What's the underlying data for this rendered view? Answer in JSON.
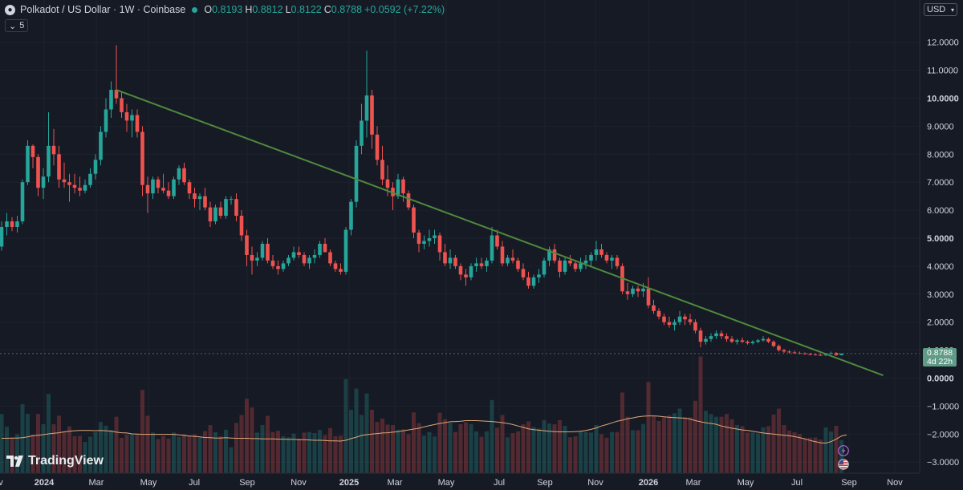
{
  "header": {
    "title": "Polkadot / US Dollar · 1W · Coinbase",
    "ohlc": [
      {
        "k": "O",
        "v": "0.8193"
      },
      {
        "k": "H",
        "v": "0.8812"
      },
      {
        "k": "L",
        "v": "0.8122"
      },
      {
        "k": "C",
        "v": "0.8788"
      },
      {
        "k": "",
        "v": "+0.0592 (+7.22%)"
      }
    ],
    "indicator_toggle": "5"
  },
  "currency": "USD",
  "last_price": {
    "value": "0.8788",
    "countdown": "4d 22h"
  },
  "brand": "TradingView",
  "colors": {
    "up": "#26a69a",
    "down": "#ef5350",
    "trendline": "#4f8a3c",
    "ma": "#e0a77a",
    "background": "#161a25"
  },
  "chart_data": {
    "type": "candlestick",
    "interval": "1W",
    "y_axis": {
      "ticks": [
        "12.0000",
        "11.0000",
        "10.0000",
        "9.0000",
        "8.0000",
        "7.0000",
        "6.0000",
        "5.0000",
        "4.0000",
        "3.0000",
        "2.0000",
        "1.0000",
        "0.0000",
        "−1.0000",
        "−2.0000",
        "−3.0000"
      ],
      "bold": [
        "10.0000",
        "5.0000",
        "0.0000"
      ]
    },
    "x_axis": {
      "ticks": [
        "ov",
        "2024",
        "Mar",
        "May",
        "Jul",
        "Sep",
        "Nov",
        "2025",
        "Mar",
        "May",
        "Jul",
        "Sep",
        "Nov",
        "2026",
        "Mar",
        "May",
        "Jul",
        "Sep",
        "Nov"
      ],
      "bold": [
        "2024",
        "2025",
        "2026"
      ]
    },
    "candles": [
      [
        4.7,
        5.6,
        4.55,
        5.4
      ],
      [
        5.4,
        5.9,
        5.1,
        5.6
      ],
      [
        5.6,
        5.75,
        5.25,
        5.4
      ],
      [
        5.4,
        5.8,
        5.2,
        5.6
      ],
      [
        5.6,
        7.1,
        5.5,
        7.0
      ],
      [
        7.0,
        8.5,
        6.9,
        8.3
      ],
      [
        8.3,
        8.35,
        7.5,
        7.9
      ],
      [
        7.9,
        8.0,
        6.5,
        6.8
      ],
      [
        6.8,
        7.5,
        6.4,
        7.2
      ],
      [
        7.2,
        9.5,
        7.0,
        8.3
      ],
      [
        8.3,
        8.9,
        7.6,
        8.0
      ],
      [
        8.0,
        8.3,
        6.8,
        7.1
      ],
      [
        7.1,
        7.7,
        6.8,
        7.0
      ],
      [
        7.0,
        7.3,
        6.3,
        6.9
      ],
      [
        6.9,
        7.3,
        6.6,
        6.8
      ],
      [
        6.8,
        7.2,
        6.5,
        6.7
      ],
      [
        6.7,
        7.1,
        6.6,
        6.9
      ],
      [
        6.9,
        7.5,
        6.8,
        7.3
      ],
      [
        7.3,
        8.0,
        7.1,
        7.8
      ],
      [
        7.8,
        9.0,
        7.6,
        8.8
      ],
      [
        8.8,
        10.0,
        8.6,
        9.6
      ],
      [
        9.6,
        10.6,
        9.3,
        10.3
      ],
      [
        10.3,
        11.9,
        9.8,
        10.0
      ],
      [
        10.0,
        10.2,
        9.3,
        9.5
      ],
      [
        9.5,
        9.8,
        8.8,
        9.2
      ],
      [
        9.2,
        9.6,
        8.6,
        9.4
      ],
      [
        9.4,
        9.6,
        8.6,
        8.8
      ],
      [
        8.8,
        9.0,
        6.5,
        6.9
      ],
      [
        6.9,
        7.2,
        5.9,
        6.6
      ],
      [
        6.6,
        7.2,
        6.4,
        7.1
      ],
      [
        7.1,
        7.2,
        6.6,
        6.8
      ],
      [
        6.8,
        7.3,
        6.6,
        6.7
      ],
      [
        6.7,
        7.0,
        6.4,
        6.5
      ],
      [
        6.5,
        7.2,
        6.4,
        7.1
      ],
      [
        7.1,
        7.6,
        6.9,
        7.5
      ],
      [
        7.5,
        7.7,
        6.9,
        7.0
      ],
      [
        7.0,
        7.1,
        6.4,
        6.6
      ],
      [
        6.6,
        6.8,
        6.1,
        6.4
      ],
      [
        6.4,
        6.6,
        6.0,
        6.5
      ],
      [
        6.5,
        6.8,
        6.0,
        6.1
      ],
      [
        6.1,
        6.3,
        5.4,
        5.6
      ],
      [
        5.6,
        6.2,
        5.5,
        6.1
      ],
      [
        6.1,
        6.3,
        5.7,
        5.8
      ],
      [
        5.8,
        6.5,
        5.7,
        6.4
      ],
      [
        6.4,
        6.5,
        6.2,
        6.4
      ],
      [
        6.4,
        6.6,
        5.6,
        5.8
      ],
      [
        5.8,
        6.0,
        4.9,
        5.1
      ],
      [
        5.1,
        5.3,
        4.0,
        4.4
      ],
      [
        4.4,
        4.7,
        3.7,
        4.2
      ],
      [
        4.2,
        4.5,
        4.0,
        4.3
      ],
      [
        4.3,
        4.9,
        4.2,
        4.8
      ],
      [
        4.8,
        5.0,
        4.1,
        4.2
      ],
      [
        4.2,
        4.4,
        3.9,
        4.0
      ],
      [
        4.0,
        4.2,
        3.7,
        3.9
      ],
      [
        3.9,
        4.2,
        3.8,
        4.1
      ],
      [
        4.1,
        4.4,
        4.0,
        4.3
      ],
      [
        4.3,
        4.7,
        4.2,
        4.5
      ],
      [
        4.5,
        4.7,
        4.3,
        4.4
      ],
      [
        4.4,
        4.5,
        4.0,
        4.1
      ],
      [
        4.1,
        4.4,
        3.9,
        4.3
      ],
      [
        4.3,
        4.6,
        4.1,
        4.4
      ],
      [
        4.4,
        4.9,
        4.3,
        4.8
      ],
      [
        4.8,
        5.0,
        4.5,
        4.5
      ],
      [
        4.5,
        4.6,
        4.0,
        4.1
      ],
      [
        4.1,
        4.2,
        3.8,
        3.9
      ],
      [
        3.9,
        4.1,
        3.7,
        3.8
      ],
      [
        3.8,
        5.4,
        3.7,
        5.3
      ],
      [
        5.3,
        6.4,
        5.1,
        6.3
      ],
      [
        6.3,
        8.5,
        6.1,
        8.3
      ],
      [
        8.3,
        9.8,
        8.0,
        9.2
      ],
      [
        9.2,
        11.7,
        8.6,
        10.1
      ],
      [
        10.1,
        10.3,
        8.2,
        8.7
      ],
      [
        8.7,
        9.0,
        7.6,
        7.8
      ],
      [
        7.8,
        8.3,
        6.9,
        7.1
      ],
      [
        7.1,
        7.6,
        6.5,
        6.8
      ],
      [
        6.8,
        7.0,
        6.0,
        6.5
      ],
      [
        6.5,
        7.3,
        6.4,
        7.1
      ],
      [
        7.1,
        7.2,
        6.3,
        6.6
      ],
      [
        6.6,
        6.7,
        6.0,
        6.1
      ],
      [
        6.1,
        6.2,
        5.0,
        5.2
      ],
      [
        5.2,
        5.3,
        4.5,
        4.8
      ],
      [
        4.8,
        5.1,
        4.6,
        4.9
      ],
      [
        4.9,
        5.3,
        4.7,
        5.0
      ],
      [
        5.0,
        5.3,
        4.8,
        5.1
      ],
      [
        5.1,
        5.2,
        4.2,
        4.5
      ],
      [
        4.5,
        4.8,
        4.0,
        4.1
      ],
      [
        4.1,
        4.6,
        3.9,
        4.3
      ],
      [
        4.3,
        4.4,
        3.9,
        4.0
      ],
      [
        4.0,
        4.1,
        3.5,
        3.7
      ],
      [
        3.7,
        3.9,
        3.3,
        3.6
      ],
      [
        3.6,
        4.1,
        3.5,
        4.0
      ],
      [
        4.0,
        4.3,
        3.8,
        4.1
      ],
      [
        4.1,
        4.3,
        3.9,
        4.0
      ],
      [
        4.0,
        4.3,
        3.8,
        4.2
      ],
      [
        4.2,
        5.4,
        4.1,
        5.1
      ],
      [
        5.1,
        5.3,
        4.6,
        4.7
      ],
      [
        4.7,
        4.9,
        4.0,
        4.1
      ],
      [
        4.1,
        4.4,
        4.0,
        4.3
      ],
      [
        4.3,
        4.6,
        4.1,
        4.2
      ],
      [
        4.2,
        4.3,
        3.8,
        3.9
      ],
      [
        3.9,
        4.1,
        3.5,
        3.6
      ],
      [
        3.6,
        3.8,
        3.2,
        3.3
      ],
      [
        3.3,
        3.7,
        3.2,
        3.6
      ],
      [
        3.6,
        3.9,
        3.4,
        3.7
      ],
      [
        3.7,
        4.3,
        3.6,
        4.2
      ],
      [
        4.2,
        4.7,
        4.0,
        4.6
      ],
      [
        4.6,
        4.8,
        4.1,
        4.2
      ],
      [
        4.2,
        4.3,
        3.6,
        3.8
      ],
      [
        3.8,
        4.3,
        3.7,
        4.2
      ],
      [
        4.2,
        4.4,
        4.0,
        4.1
      ],
      [
        4.1,
        4.2,
        3.8,
        3.9
      ],
      [
        3.9,
        4.3,
        3.8,
        4.1
      ],
      [
        4.1,
        4.4,
        3.9,
        4.2
      ],
      [
        4.2,
        4.5,
        4.0,
        4.4
      ],
      [
        4.4,
        4.9,
        4.2,
        4.6
      ],
      [
        4.6,
        4.8,
        4.3,
        4.4
      ],
      [
        4.4,
        4.5,
        4.1,
        4.2
      ],
      [
        4.2,
        4.4,
        3.9,
        4.3
      ],
      [
        4.3,
        4.4,
        3.9,
        4.0
      ],
      [
        4.0,
        4.1,
        3.0,
        3.1
      ],
      [
        3.1,
        3.4,
        2.8,
        3.0
      ],
      [
        3.0,
        3.3,
        2.9,
        3.2
      ],
      [
        3.2,
        3.3,
        2.9,
        3.1
      ],
      [
        3.1,
        3.4,
        2.9,
        3.2
      ],
      [
        3.2,
        3.6,
        2.5,
        2.6
      ],
      [
        2.6,
        2.8,
        2.3,
        2.4
      ],
      [
        2.4,
        2.5,
        2.1,
        2.2
      ],
      [
        2.2,
        2.3,
        1.9,
        2.0
      ],
      [
        2.0,
        2.2,
        1.8,
        1.9
      ],
      [
        1.9,
        2.1,
        1.7,
        2.0
      ],
      [
        2.0,
        2.4,
        1.9,
        2.2
      ],
      [
        2.2,
        2.3,
        1.9,
        2.1
      ],
      [
        2.1,
        2.3,
        1.9,
        2.0
      ],
      [
        2.0,
        2.1,
        1.6,
        1.7
      ],
      [
        1.7,
        1.8,
        1.1,
        1.3
      ],
      [
        1.3,
        1.5,
        1.2,
        1.4
      ],
      [
        1.4,
        1.6,
        1.3,
        1.5
      ],
      [
        1.5,
        1.7,
        1.4,
        1.6
      ],
      [
        1.6,
        1.7,
        1.4,
        1.5
      ],
      [
        1.5,
        1.6,
        1.3,
        1.4
      ],
      [
        1.4,
        1.5,
        1.25,
        1.3
      ],
      [
        1.3,
        1.4,
        1.2,
        1.35
      ],
      [
        1.35,
        1.45,
        1.25,
        1.3
      ],
      [
        1.3,
        1.35,
        1.2,
        1.25
      ],
      [
        1.25,
        1.35,
        1.2,
        1.3
      ],
      [
        1.3,
        1.4,
        1.25,
        1.35
      ],
      [
        1.35,
        1.5,
        1.3,
        1.4
      ],
      [
        1.4,
        1.45,
        1.25,
        1.3
      ],
      [
        1.3,
        1.35,
        1.1,
        1.15
      ],
      [
        1.15,
        1.2,
        0.95,
        1.0
      ],
      [
        1.0,
        1.05,
        0.9,
        0.95
      ],
      [
        0.95,
        1.0,
        0.88,
        0.92
      ],
      [
        0.92,
        0.98,
        0.87,
        0.9
      ],
      [
        0.9,
        0.95,
        0.85,
        0.88
      ],
      [
        0.88,
        0.92,
        0.84,
        0.86
      ],
      [
        0.86,
        0.9,
        0.82,
        0.85
      ],
      [
        0.85,
        0.89,
        0.81,
        0.83
      ],
      [
        0.83,
        0.87,
        0.8,
        0.82
      ],
      [
        0.82,
        0.9,
        0.78,
        0.88
      ],
      [
        0.88,
        0.95,
        0.84,
        0.9
      ],
      [
        0.9,
        0.93,
        0.8,
        0.82
      ],
      [
        0.8193,
        0.8812,
        0.8122,
        0.8788
      ]
    ],
    "ma_series": [
      -2.15,
      -2.15,
      -2.14,
      -2.14,
      -2.13,
      -2.1,
      -2.06,
      -2.04,
      -2.02,
      -1.99,
      -1.97,
      -1.95,
      -1.92,
      -1.9,
      -1.88,
      -1.87,
      -1.87,
      -1.87,
      -1.88,
      -1.87,
      -1.88,
      -1.9,
      -1.93,
      -1.95,
      -1.96,
      -1.99,
      -2.0,
      -2.01,
      -2.01,
      -2.01,
      -2.01,
      -2.01,
      -2.01,
      -2.01,
      -2.03,
      -2.05,
      -2.07,
      -2.08,
      -2.1,
      -2.12,
      -2.13,
      -2.14,
      -2.14,
      -2.13,
      -2.14,
      -2.15,
      -2.15,
      -2.15,
      -2.16,
      -2.16,
      -2.17,
      -2.17,
      -2.17,
      -2.18,
      -2.18,
      -2.19,
      -2.19,
      -2.2,
      -2.2,
      -2.21,
      -2.22,
      -2.22,
      -2.23,
      -2.24,
      -2.24,
      -2.25,
      -2.22,
      -2.16,
      -2.11,
      -2.05,
      -2.02,
      -2.0,
      -1.98,
      -1.96,
      -1.95,
      -1.93,
      -1.91,
      -1.88,
      -1.85,
      -1.82,
      -1.79,
      -1.74,
      -1.7,
      -1.66,
      -1.62,
      -1.59,
      -1.56,
      -1.55,
      -1.54,
      -1.52,
      -1.52,
      -1.52,
      -1.53,
      -1.54,
      -1.55,
      -1.57,
      -1.59,
      -1.62,
      -1.66,
      -1.71,
      -1.76,
      -1.81,
      -1.84,
      -1.86,
      -1.88,
      -1.9,
      -1.91,
      -1.92,
      -1.92,
      -1.92,
      -1.91,
      -1.9,
      -1.87,
      -1.83,
      -1.78,
      -1.71,
      -1.66,
      -1.6,
      -1.54,
      -1.5,
      -1.45,
      -1.42,
      -1.38,
      -1.36,
      -1.35,
      -1.35,
      -1.36,
      -1.38,
      -1.4,
      -1.41,
      -1.42,
      -1.43,
      -1.46,
      -1.52,
      -1.56,
      -1.6,
      -1.62,
      -1.65,
      -1.71,
      -1.75,
      -1.79,
      -1.82,
      -1.85,
      -1.87,
      -1.9,
      -1.93,
      -1.96,
      -1.98,
      -2.0,
      -2.02,
      -2.04,
      -2.06,
      -2.09,
      -2.13,
      -2.17,
      -2.23,
      -2.27,
      -2.31,
      -2.32,
      -2.27,
      -2.18,
      -2.07,
      -2.03
    ],
    "trendline": {
      "from": {
        "bar": 22,
        "price": 10.3
      },
      "to": {
        "bar": 169,
        "price": 0.1
      }
    }
  }
}
